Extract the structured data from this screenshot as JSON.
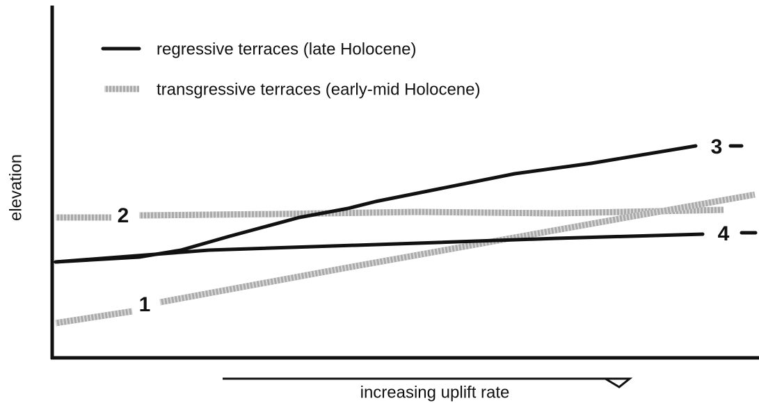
{
  "legend": [
    {
      "label": "regressive terraces (late Holocene)"
    },
    {
      "label": "transgressive terraces (early-mid Holocene)"
    }
  ],
  "axes": {
    "y_label": "elevation",
    "x_label": "increasing uplift rate"
  },
  "line_labels": [
    "1",
    "2",
    "3",
    "4"
  ]
}
